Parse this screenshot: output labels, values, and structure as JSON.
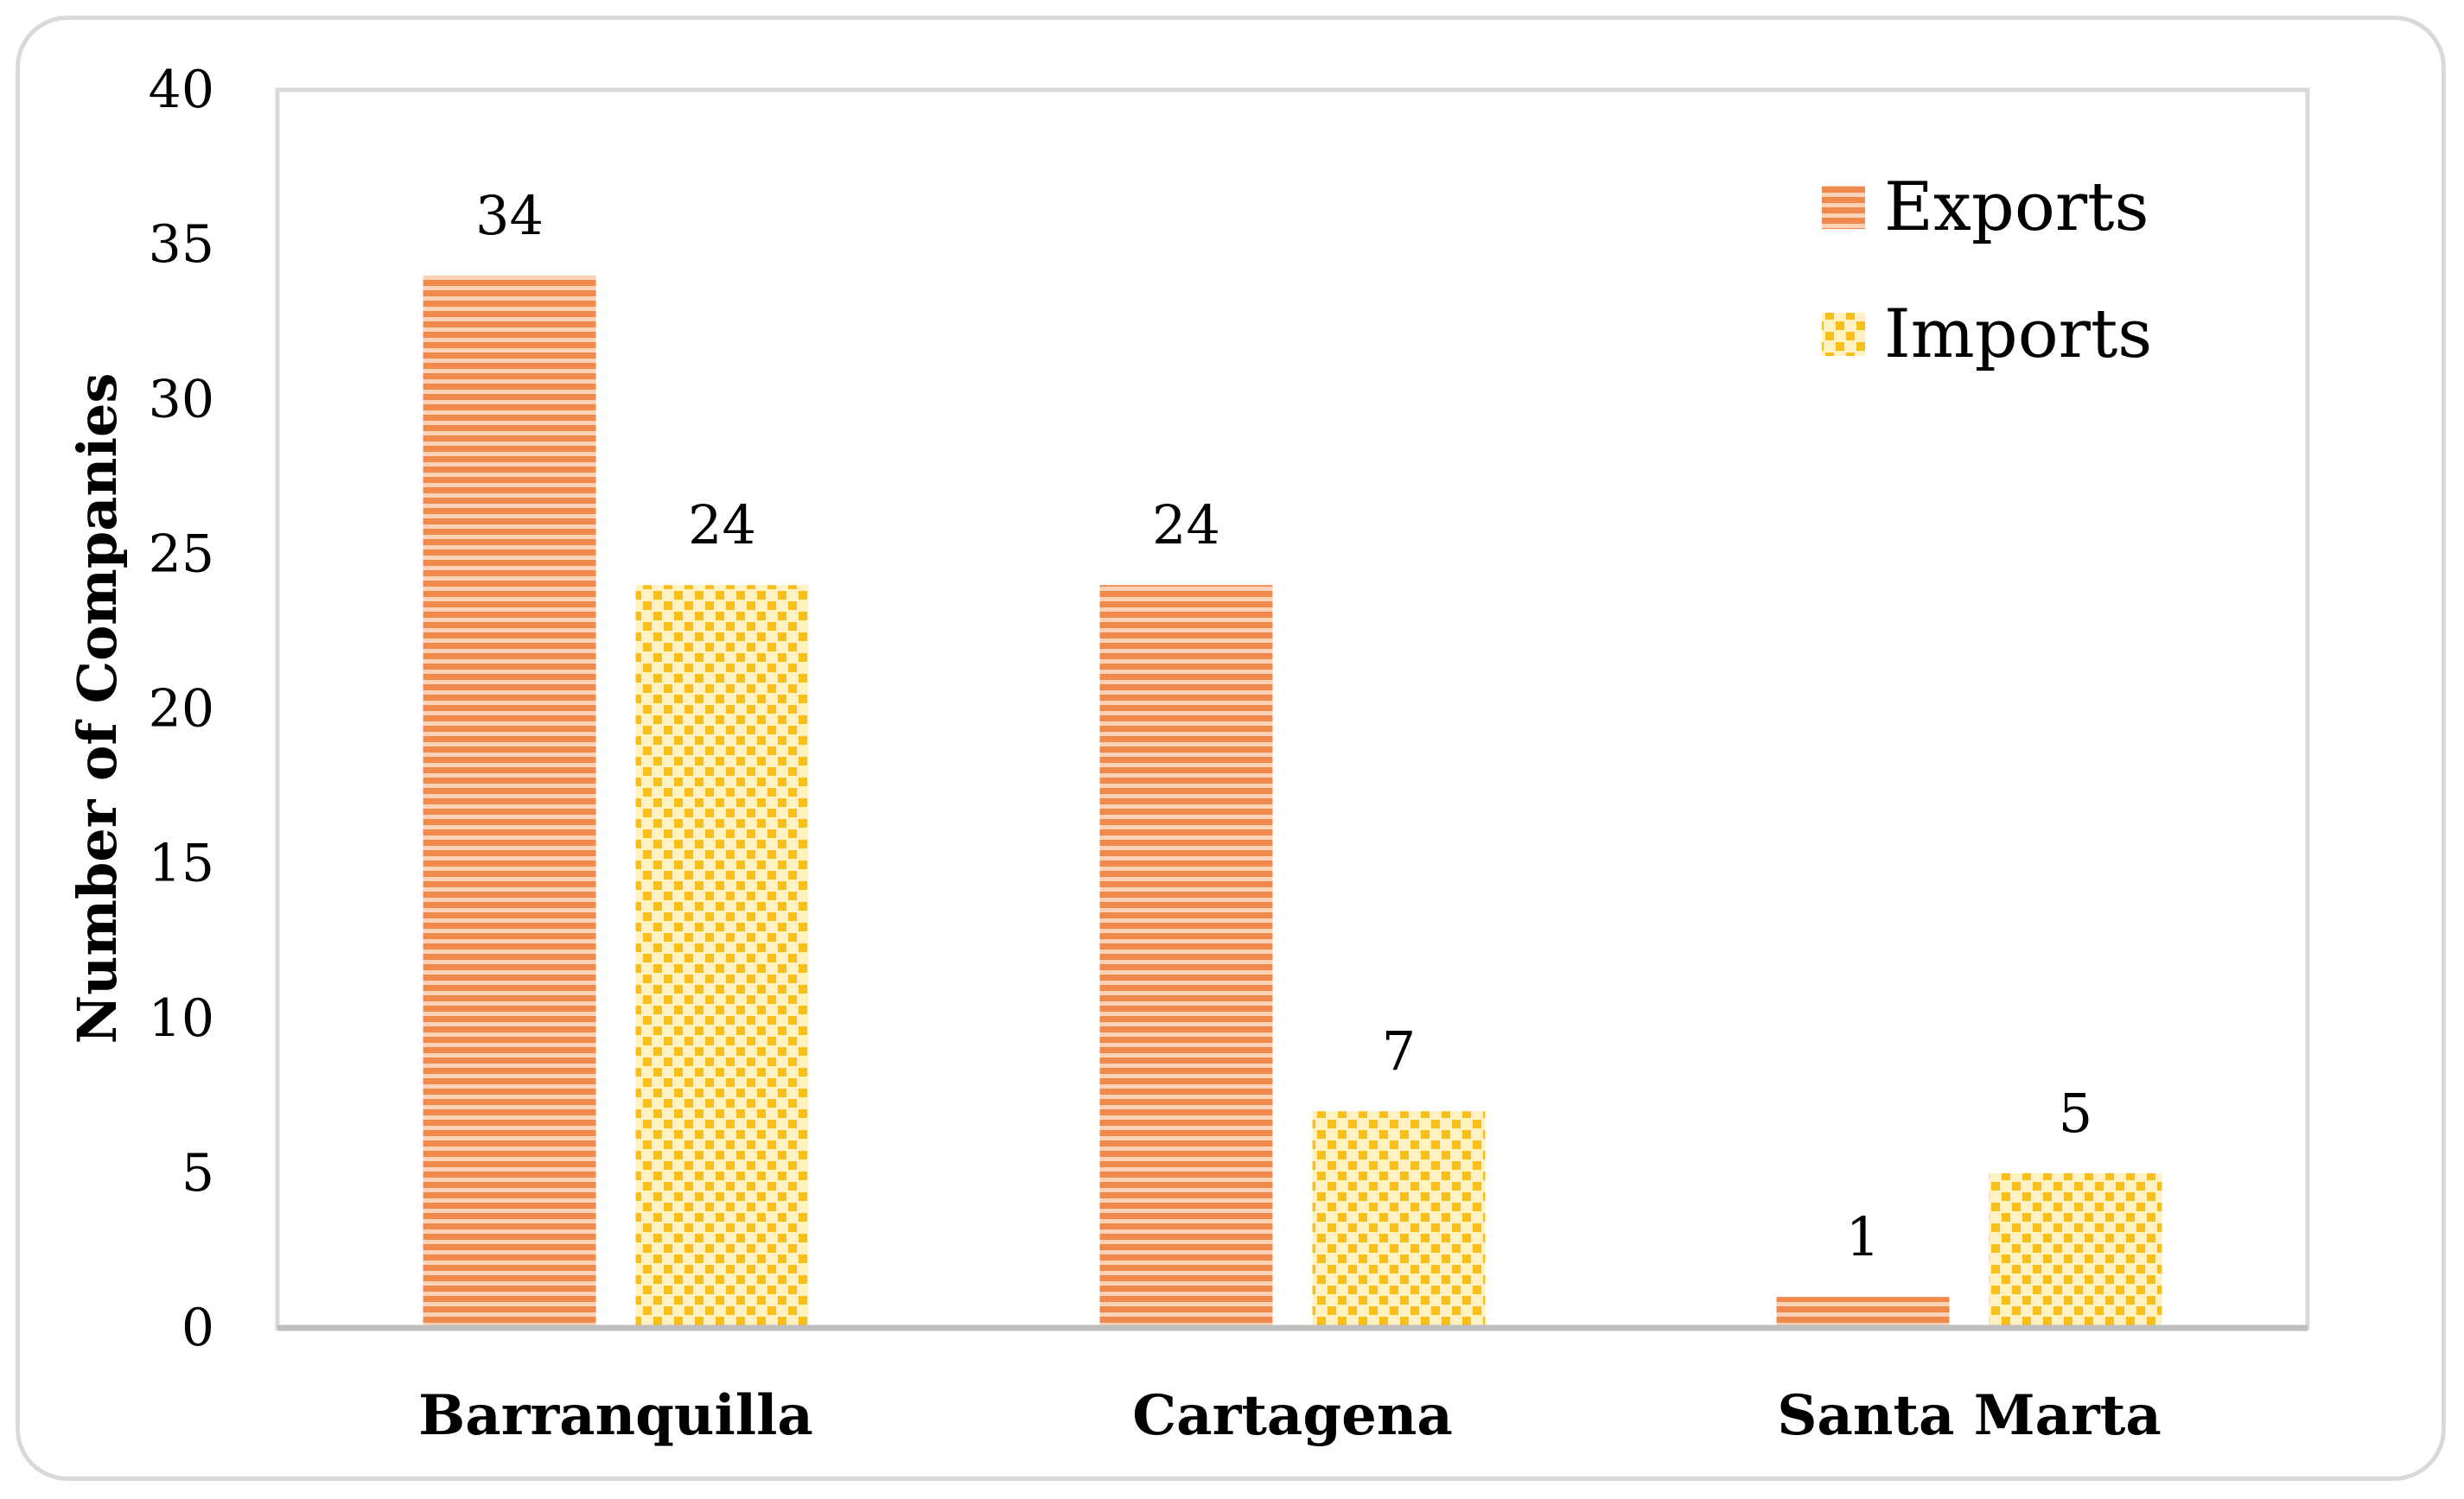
{
  "chart_data": {
    "type": "bar",
    "title": "",
    "xlabel": "",
    "ylabel": "Number of Companies",
    "ylim": [
      0,
      40
    ],
    "yticks": [
      0,
      5,
      10,
      15,
      20,
      25,
      30,
      35,
      40
    ],
    "categories": [
      "Barranquilla",
      "Cartagena",
      "Santa Marta"
    ],
    "series": [
      {
        "name": "Exports",
        "values": [
          34,
          24,
          1
        ],
        "color": "#f4915a",
        "pattern": "horizontal-stripes"
      },
      {
        "name": "Imports",
        "values": [
          24,
          7,
          5
        ],
        "color": "#f7c325",
        "pattern": "checker"
      }
    ],
    "legend": {
      "position": "top-right"
    },
    "grid": false
  }
}
